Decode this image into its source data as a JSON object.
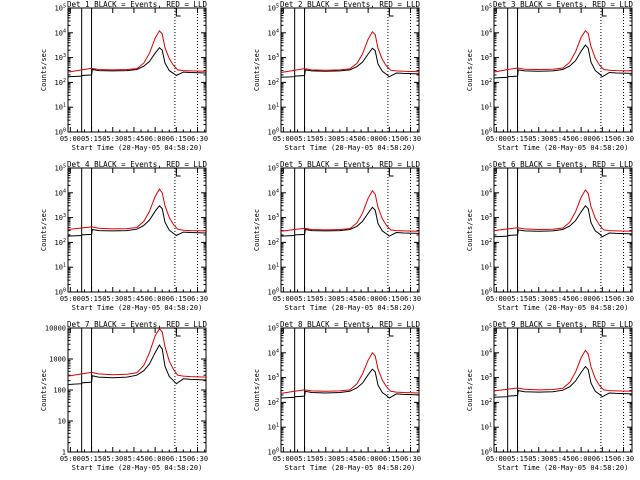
{
  "colors": {
    "events": "#000000",
    "lld": "#e00000",
    "axes": "#000000",
    "background": "#ffffff"
  },
  "shared": {
    "xlabel": "Start Time (20-May-05 04:58:20)",
    "ylabel": "Counts/sec",
    "x_tick_labels": [
      "05:00",
      "05:15",
      "05:30",
      "05:45",
      "06:00",
      "06:15",
      "06:30"
    ],
    "x_tick_minutes": [
      0,
      15,
      30,
      45,
      60,
      75,
      90
    ],
    "xlim_minutes": [
      -1.67,
      96
    ],
    "legend_text": "BLACK = Events, RED = LLD",
    "solid_markers_minutes": [
      8,
      15
    ],
    "dotted_markers_minutes": [
      74,
      90
    ],
    "top_marker_minute": [
      75,
      78
    ]
  },
  "chart_data": [
    {
      "type": "line",
      "title": "Det 1",
      "yscale": "log",
      "ylim": [
        1,
        100000
      ],
      "ytick_labels": [
        "10^0",
        "10^1",
        "10^2",
        "10^3",
        "10^4",
        "10^5"
      ],
      "series": [
        {
          "name": "Events",
          "x": [
            -1.67,
            8,
            8.2,
            15,
            15.5,
            20,
            30,
            40,
            47,
            52,
            56,
            60,
            63,
            65,
            67,
            70,
            73,
            75,
            80,
            85,
            96
          ],
          "y": [
            170,
            180,
            190,
            200,
            330,
            300,
            290,
            300,
            330,
            450,
            700,
            1500,
            2500,
            2000,
            600,
            300,
            230,
            190,
            260,
            250,
            240
          ]
        },
        {
          "name": "LLD",
          "x": [
            -1.67,
            8,
            15,
            20,
            30,
            40,
            47,
            52,
            56,
            60,
            63,
            65,
            67,
            70,
            73,
            76,
            80,
            85,
            96
          ],
          "y": [
            260,
            320,
            370,
            330,
            320,
            330,
            360,
            600,
            1500,
            6000,
            12000,
            9000,
            2500,
            900,
            480,
            320,
            300,
            290,
            280
          ]
        }
      ]
    },
    {
      "type": "line",
      "title": "Det 2",
      "yscale": "log",
      "ylim": [
        1,
        100000
      ],
      "ytick_labels": [
        "10^0",
        "10^1",
        "10^2",
        "10^3",
        "10^4",
        "10^5"
      ],
      "series": [
        {
          "name": "Events",
          "x": [
            -1.67,
            8,
            8.2,
            15,
            15.5,
            20,
            30,
            40,
            47,
            52,
            56,
            60,
            63,
            65,
            67,
            70,
            73,
            75,
            80,
            85,
            96
          ],
          "y": [
            160,
            170,
            180,
            190,
            320,
            290,
            280,
            290,
            320,
            430,
            650,
            1400,
            2400,
            1900,
            550,
            280,
            210,
            170,
            240,
            230,
            220
          ]
        },
        {
          "name": "LLD",
          "x": [
            -1.67,
            8,
            15,
            20,
            30,
            40,
            47,
            52,
            56,
            60,
            63,
            65,
            67,
            70,
            73,
            76,
            80,
            85,
            96
          ],
          "y": [
            250,
            310,
            360,
            320,
            310,
            320,
            350,
            580,
            1400,
            5500,
            11000,
            8500,
            2400,
            850,
            460,
            310,
            290,
            280,
            270
          ]
        }
      ]
    },
    {
      "type": "line",
      "title": "Det 3",
      "yscale": "log",
      "ylim": [
        1,
        100000
      ],
      "ytick_labels": [
        "10^0",
        "10^1",
        "10^2",
        "10^3",
        "10^4",
        "10^5"
      ],
      "series": [
        {
          "name": "Events",
          "x": [
            -1.67,
            8,
            8.2,
            15,
            15.5,
            20,
            30,
            40,
            47,
            52,
            56,
            60,
            63,
            65,
            67,
            70,
            73,
            75,
            80,
            85,
            96
          ],
          "y": [
            150,
            160,
            170,
            180,
            320,
            290,
            280,
            290,
            330,
            460,
            750,
            1800,
            3200,
            2400,
            650,
            300,
            220,
            170,
            250,
            240,
            230
          ]
        },
        {
          "name": "LLD",
          "x": [
            -1.67,
            8,
            15,
            20,
            30,
            40,
            47,
            52,
            56,
            60,
            63,
            65,
            67,
            70,
            73,
            76,
            80,
            85,
            96
          ],
          "y": [
            260,
            330,
            380,
            340,
            330,
            340,
            380,
            650,
            1700,
            6500,
            12000,
            9500,
            2800,
            950,
            500,
            330,
            310,
            300,
            290
          ]
        }
      ]
    },
    {
      "type": "line",
      "title": "Det 4",
      "yscale": "log",
      "ylim": [
        1,
        100000
      ],
      "ytick_labels": [
        "10^0",
        "10^1",
        "10^2",
        "10^3",
        "10^4",
        "10^5"
      ],
      "series": [
        {
          "name": "Events",
          "x": [
            -1.67,
            8,
            8.2,
            15,
            15.5,
            20,
            30,
            40,
            47,
            52,
            56,
            60,
            63,
            65,
            67,
            70,
            73,
            75,
            80,
            85,
            96
          ],
          "y": [
            180,
            190,
            200,
            210,
            330,
            300,
            290,
            300,
            340,
            480,
            800,
            1800,
            3000,
            2300,
            650,
            310,
            230,
            190,
            260,
            250,
            240
          ]
        },
        {
          "name": "LLD",
          "x": [
            -1.67,
            8,
            15,
            20,
            30,
            40,
            47,
            52,
            56,
            60,
            63,
            65,
            67,
            70,
            73,
            76,
            80,
            85,
            96
          ],
          "y": [
            330,
            380,
            420,
            370,
            350,
            360,
            400,
            700,
            1800,
            7000,
            14000,
            10000,
            3000,
            1000,
            520,
            340,
            310,
            300,
            290
          ]
        }
      ]
    },
    {
      "type": "line",
      "title": "Det 5",
      "yscale": "log",
      "ylim": [
        1,
        100000
      ],
      "ytick_labels": [
        "10^0",
        "10^1",
        "10^2",
        "10^3",
        "10^4",
        "10^5"
      ],
      "series": [
        {
          "name": "Events",
          "x": [
            -1.67,
            8,
            8.2,
            15,
            15.5,
            20,
            30,
            40,
            47,
            52,
            56,
            60,
            63,
            65,
            67,
            70,
            73,
            75,
            80,
            85,
            96
          ],
          "y": [
            180,
            190,
            200,
            210,
            330,
            300,
            290,
            300,
            330,
            440,
            700,
            1500,
            2600,
            2000,
            580,
            290,
            220,
            180,
            250,
            240,
            230
          ]
        },
        {
          "name": "LLD",
          "x": [
            -1.67,
            8,
            15,
            20,
            30,
            40,
            47,
            52,
            56,
            60,
            63,
            65,
            67,
            70,
            73,
            76,
            80,
            85,
            96
          ],
          "y": [
            280,
            330,
            370,
            330,
            320,
            330,
            360,
            600,
            1500,
            6000,
            12000,
            8800,
            2600,
            900,
            480,
            320,
            300,
            290,
            280
          ]
        }
      ]
    },
    {
      "type": "line",
      "title": "Det 6",
      "yscale": "log",
      "ylim": [
        1,
        100000
      ],
      "ytick_labels": [
        "10^0",
        "10^1",
        "10^2",
        "10^3",
        "10^4",
        "10^5"
      ],
      "series": [
        {
          "name": "Events",
          "x": [
            -1.67,
            8,
            8.2,
            15,
            15.5,
            20,
            30,
            40,
            47,
            52,
            56,
            60,
            63,
            65,
            67,
            70,
            73,
            75,
            80,
            85,
            96
          ],
          "y": [
            170,
            180,
            190,
            200,
            320,
            290,
            280,
            290,
            330,
            460,
            750,
            1700,
            3000,
            2300,
            620,
            290,
            220,
            170,
            240,
            230,
            220
          ]
        },
        {
          "name": "LLD",
          "x": [
            -1.67,
            8,
            15,
            20,
            30,
            40,
            47,
            52,
            56,
            60,
            63,
            65,
            67,
            70,
            73,
            76,
            80,
            85,
            96
          ],
          "y": [
            300,
            350,
            390,
            350,
            330,
            340,
            380,
            650,
            1700,
            6500,
            13000,
            9500,
            2800,
            950,
            500,
            320,
            300,
            290,
            280
          ]
        }
      ]
    },
    {
      "type": "line",
      "title": "Det 7",
      "yscale": "log",
      "ylim": [
        1,
        10000
      ],
      "ytick_labels": [
        "1",
        "10",
        "100",
        "1000",
        "10000"
      ],
      "series": [
        {
          "name": "Events",
          "x": [
            -1.67,
            8,
            8.2,
            15,
            15.5,
            20,
            30,
            40,
            47,
            52,
            56,
            60,
            63,
            65,
            67,
            70,
            73,
            75,
            80,
            85,
            96
          ],
          "y": [
            150,
            160,
            170,
            180,
            290,
            260,
            250,
            260,
            300,
            420,
            700,
            1600,
            2800,
            2100,
            580,
            270,
            200,
            160,
            230,
            220,
            210
          ]
        },
        {
          "name": "LLD",
          "x": [
            -1.67,
            8,
            15,
            20,
            30,
            40,
            47,
            52,
            56,
            60,
            63,
            65,
            67,
            70,
            73,
            76,
            80,
            85,
            96
          ],
          "y": [
            280,
            330,
            370,
            330,
            310,
            320,
            360,
            620,
            1600,
            5500,
            9500,
            7500,
            2500,
            850,
            460,
            300,
            280,
            270,
            260
          ]
        }
      ]
    },
    {
      "type": "line",
      "title": "Det 8",
      "yscale": "log",
      "ylim": [
        1,
        100000
      ],
      "ytick_labels": [
        "10^0",
        "10^1",
        "10^2",
        "10^3",
        "10^4",
        "10^5"
      ],
      "series": [
        {
          "name": "Events",
          "x": [
            -1.67,
            8,
            8.2,
            15,
            15.5,
            20,
            30,
            40,
            47,
            52,
            56,
            60,
            63,
            65,
            67,
            70,
            73,
            75,
            80,
            85,
            96
          ],
          "y": [
            150,
            160,
            170,
            180,
            280,
            250,
            240,
            250,
            280,
            380,
            600,
            1300,
            2200,
            1700,
            500,
            250,
            190,
            150,
            220,
            210,
            200
          ]
        },
        {
          "name": "LLD",
          "x": [
            -1.67,
            8,
            15,
            20,
            30,
            40,
            47,
            52,
            56,
            60,
            63,
            65,
            67,
            70,
            73,
            76,
            80,
            85,
            96
          ],
          "y": [
            230,
            280,
            320,
            290,
            280,
            290,
            320,
            550,
            1400,
            5000,
            10000,
            7500,
            2200,
            800,
            430,
            280,
            260,
            250,
            240
          ]
        }
      ]
    },
    {
      "type": "line",
      "title": "Det 9",
      "yscale": "log",
      "ylim": [
        1,
        100000
      ],
      "ytick_labels": [
        "10^0",
        "10^1",
        "10^2",
        "10^3",
        "10^4",
        "10^5"
      ],
      "series": [
        {
          "name": "Events",
          "x": [
            -1.67,
            8,
            8.2,
            15,
            15.5,
            20,
            30,
            40,
            47,
            52,
            56,
            60,
            63,
            65,
            67,
            70,
            73,
            75,
            80,
            85,
            96
          ],
          "y": [
            160,
            170,
            180,
            190,
            300,
            270,
            260,
            270,
            310,
            430,
            720,
            1600,
            2800,
            2100,
            600,
            280,
            210,
            170,
            240,
            230,
            220
          ]
        },
        {
          "name": "LLD",
          "x": [
            -1.67,
            8,
            15,
            20,
            30,
            40,
            47,
            52,
            56,
            60,
            63,
            65,
            67,
            70,
            73,
            76,
            80,
            85,
            96
          ],
          "y": [
            290,
            340,
            380,
            340,
            320,
            330,
            370,
            640,
            1650,
            6200,
            12500,
            9000,
            2700,
            900,
            480,
            320,
            300,
            290,
            280
          ]
        }
      ]
    }
  ]
}
